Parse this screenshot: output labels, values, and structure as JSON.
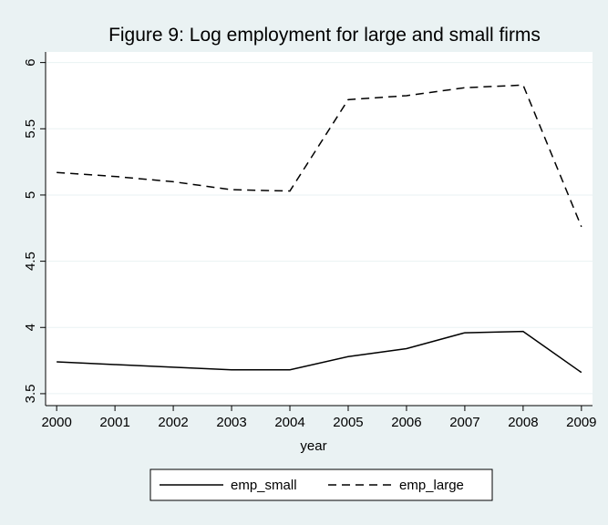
{
  "chart_data": {
    "type": "line",
    "title": "Figure 9: Log employment for large and small firms",
    "x_label": "year",
    "x": [
      2000,
      2001,
      2002,
      2003,
      2004,
      2005,
      2006,
      2007,
      2008,
      2009
    ],
    "series": [
      {
        "name": "emp_small",
        "color": "#000000",
        "line_style": "solid",
        "values": [
          3.74,
          3.72,
          3.7,
          3.68,
          3.68,
          3.78,
          3.84,
          3.96,
          3.97,
          3.66
        ]
      },
      {
        "name": "emp_large",
        "color": "#000000",
        "line_style": "dashed",
        "values": [
          5.17,
          5.14,
          5.1,
          5.04,
          5.03,
          5.72,
          5.75,
          5.81,
          5.83,
          4.76
        ]
      }
    ],
    "xlim": [
      1999.81,
      2009.19
    ],
    "xticks": [
      2000,
      2001,
      2002,
      2003,
      2004,
      2005,
      2006,
      2007,
      2008,
      2009
    ],
    "ylim": [
      3.41,
      6.08
    ],
    "yticks": [
      3.5,
      4,
      4.5,
      5,
      5.5,
      6
    ],
    "grid": true,
    "legend_position": "bottom"
  }
}
